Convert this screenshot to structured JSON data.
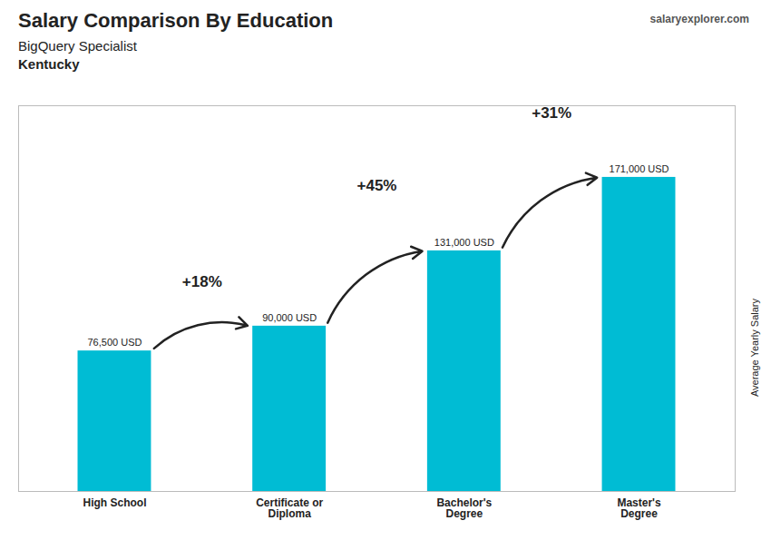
{
  "chart_data": {
    "type": "bar",
    "title": "Salary Comparison By Education",
    "subtitle": [
      "BigQuery Specialist",
      "Kentucky"
    ],
    "source": "salaryexplorer.com",
    "ylabel": "Average Yearly Salary",
    "categories": [
      "High School",
      "Certificate or\nDiploma",
      "Bachelor's\nDegree",
      "Master's\nDegree"
    ],
    "values": [
      76500,
      90000,
      131000,
      171000
    ],
    "value_labels": [
      "76,500 USD",
      "90,000 USD",
      "131,000 USD",
      "171,000 USD"
    ],
    "data_labels": true,
    "annotations": [
      "+18%",
      "+45%",
      "+31%"
    ],
    "color": "#00bcd4",
    "ylim": [
      0,
      210000
    ],
    "yticks": [],
    "tick_labels": "x",
    "grid": false
  }
}
